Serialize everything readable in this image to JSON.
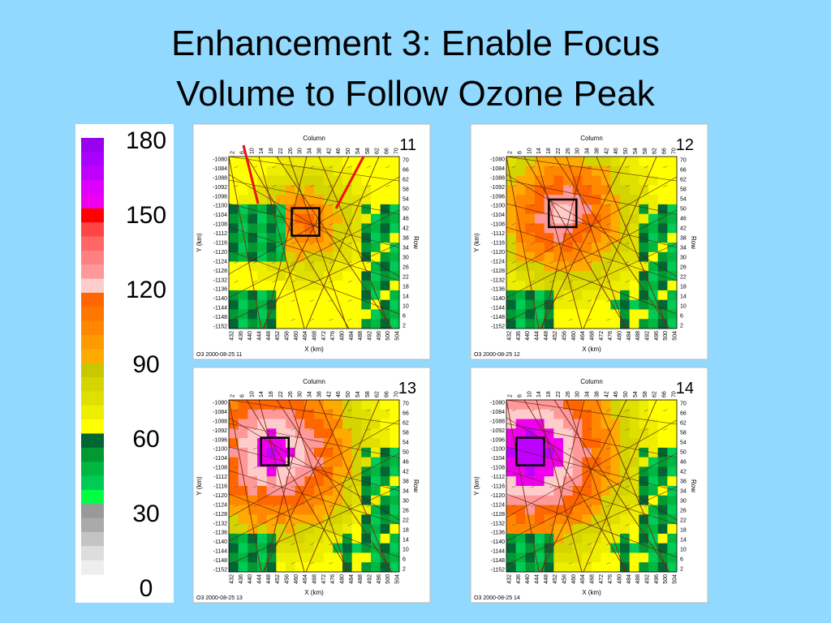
{
  "title": [
    "Enhancement 3: Enable Focus",
    "Volume to Follow Ozone Peak"
  ],
  "legend": {
    "labels": [
      180,
      150,
      120,
      90,
      60,
      30,
      0
    ],
    "colors": [
      "#9900ee",
      "#aa00ff",
      "#c000ff",
      "#dd00ff",
      "#ee00ee",
      "#ff0000",
      "#ff4444",
      "#ff6666",
      "#ff8080",
      "#ff9999",
      "#ffcccc",
      "#ff6600",
      "#ff7700",
      "#ff8800",
      "#ff9900",
      "#ffaa00",
      "#c8c800",
      "#d4d400",
      "#e0e000",
      "#eeee00",
      "#ffff00",
      "#006633",
      "#009933",
      "#00b840",
      "#00cc55",
      "#00ff44",
      "#999999",
      "#aaaaaa",
      "#c4c4c4",
      "#dddddd",
      "#eeeeee"
    ]
  },
  "axes": {
    "column_label": "Column",
    "row_label": "Row",
    "x_label": "X (km)",
    "y_label": "Y (km)",
    "x_ticks": [
      432,
      436,
      440,
      444,
      448,
      452,
      456,
      460,
      464,
      468,
      472,
      476,
      480,
      484,
      488,
      492,
      496,
      500,
      504
    ],
    "y_ticks": [
      -1080,
      -1084,
      -1088,
      -1092,
      -1096,
      -1100,
      -1104,
      -1108,
      -1112,
      -1116,
      -1120,
      -1124,
      -1128,
      -1132,
      -1136,
      -1140,
      -1144,
      -1148,
      -1152
    ],
    "column_ticks": [
      2,
      6,
      10,
      14,
      18,
      22,
      26,
      30,
      34,
      38,
      42,
      46,
      50,
      54,
      58,
      62,
      66,
      70
    ],
    "row_ticks": [
      70,
      66,
      62,
      58,
      54,
      50,
      46,
      42,
      38,
      34,
      30,
      26,
      22,
      18,
      14,
      10,
      6,
      2
    ]
  },
  "panels": [
    {
      "number": 11,
      "caption": "O3 2000-08-25 11"
    },
    {
      "number": 12,
      "caption": "O3 2000-08-25 12"
    },
    {
      "number": 13,
      "caption": "O3 2000-08-25 13"
    },
    {
      "number": 14,
      "caption": "O3 2000-08-25 14"
    }
  ]
}
